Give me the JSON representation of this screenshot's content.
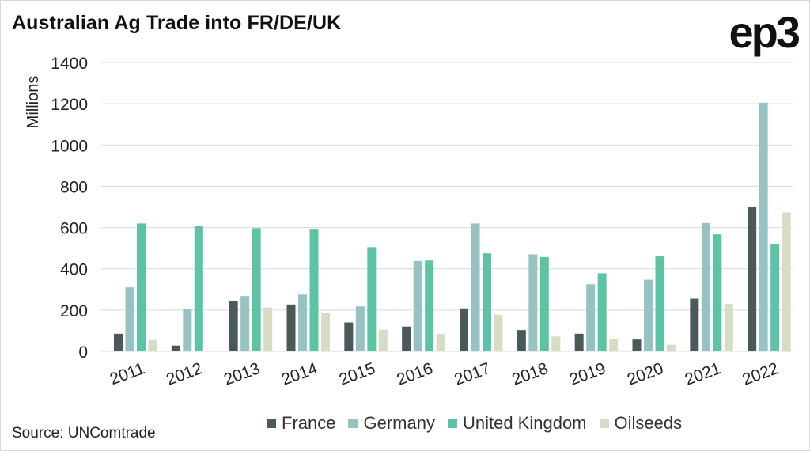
{
  "header": {
    "title": "Australian Ag Trade into FR/DE/UK",
    "logo_text": "ep3"
  },
  "footer": {
    "source": "Source: UNComtrade"
  },
  "chart_data": {
    "type": "bar",
    "title": "Australian Ag Trade into FR/DE/UK",
    "xlabel": "",
    "ylabel": "Millions",
    "ylim": [
      0,
      1400
    ],
    "yticks": [
      0,
      200,
      400,
      600,
      800,
      1000,
      1200,
      1400
    ],
    "grid": true,
    "legend_position": "bottom",
    "categories": [
      "2011",
      "2012",
      "2013",
      "2014",
      "2015",
      "2016",
      "2017",
      "2018",
      "2019",
      "2020",
      "2021",
      "2022"
    ],
    "series": [
      {
        "name": "France",
        "color": "#4a5a5a",
        "values": [
          85,
          28,
          245,
          227,
          140,
          120,
          208,
          103,
          85,
          57,
          255,
          698
        ]
      },
      {
        "name": "Germany",
        "color": "#96c2c1",
        "values": [
          310,
          205,
          268,
          275,
          218,
          438,
          620,
          470,
          325,
          347,
          622,
          1205
        ]
      },
      {
        "name": "United Kingdom",
        "color": "#5cc4a4",
        "values": [
          620,
          608,
          597,
          590,
          505,
          440,
          475,
          457,
          378,
          460,
          567,
          518
        ]
      },
      {
        "name": "Oilseeds",
        "color": "#d7dcc4",
        "values": [
          55,
          0,
          213,
          188,
          105,
          85,
          177,
          72,
          60,
          32,
          230,
          673
        ]
      }
    ]
  }
}
